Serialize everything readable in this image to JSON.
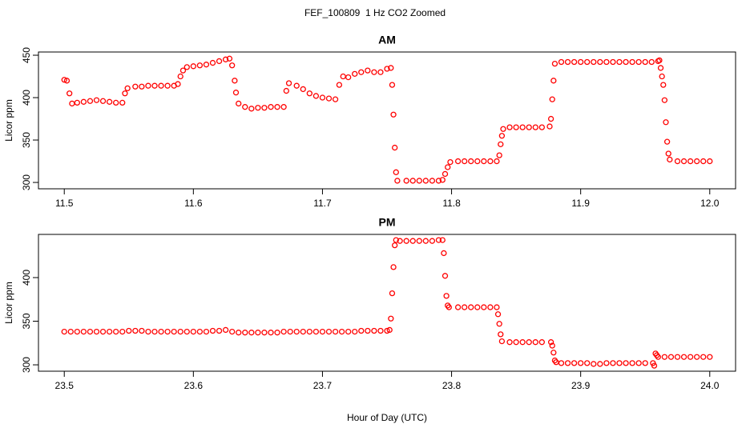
{
  "title": "FEF_100809  1 Hz CO2 Zoomed",
  "x_label": "Hour of Day (UTC)",
  "chart_data": [
    {
      "type": "scatter",
      "title": "AM",
      "y_label": "Licor ppm",
      "color": "#ff0000",
      "xlim": [
        11.48,
        12.02
      ],
      "ylim": [
        292.5,
        453.8
      ],
      "xticks": [
        11.5,
        11.6,
        11.7,
        11.8,
        11.9,
        {
          "value": 12,
          "label": "12.0"
        }
      ],
      "yticks": [
        300,
        350,
        400,
        450
      ],
      "x": [
        11.5,
        11.502,
        11.504,
        11.506,
        11.51,
        11.515,
        11.52,
        11.525,
        11.53,
        11.535,
        11.54,
        11.545,
        11.547,
        11.549,
        11.555,
        11.56,
        11.565,
        11.57,
        11.575,
        11.58,
        11.585,
        11.588,
        11.59,
        11.592,
        11.595,
        11.6,
        11.605,
        11.61,
        11.615,
        11.62,
        11.625,
        11.628,
        11.63,
        11.632,
        11.633,
        11.635,
        11.64,
        11.645,
        11.65,
        11.655,
        11.66,
        11.665,
        11.67,
        11.672,
        11.674,
        11.68,
        11.685,
        11.69,
        11.695,
        11.7,
        11.705,
        11.71,
        11.713,
        11.716,
        11.72,
        11.725,
        11.73,
        11.735,
        11.74,
        11.745,
        11.75,
        11.753,
        11.754,
        11.755,
        11.756,
        11.757,
        11.758,
        11.765,
        11.77,
        11.775,
        11.78,
        11.785,
        11.79,
        11.793,
        11.795,
        11.797,
        11.799,
        11.805,
        11.81,
        11.815,
        11.82,
        11.825,
        11.83,
        11.835,
        11.837,
        11.838,
        11.839,
        11.84,
        11.845,
        11.85,
        11.855,
        11.86,
        11.865,
        11.87,
        11.876,
        11.877,
        11.878,
        11.879,
        11.88,
        11.885,
        11.89,
        11.895,
        11.9,
        11.905,
        11.91,
        11.915,
        11.92,
        11.925,
        11.93,
        11.935,
        11.94,
        11.945,
        11.95,
        11.955,
        11.96,
        11.961,
        11.962,
        11.963,
        11.964,
        11.965,
        11.966,
        11.967,
        11.968,
        11.969,
        11.975,
        11.98,
        11.985,
        11.99,
        11.995,
        12.0
      ],
      "values": [
        421,
        420,
        405,
        393,
        394,
        395,
        396,
        397,
        396,
        395,
        394,
        394,
        405,
        411,
        413,
        413,
        414,
        414,
        414,
        414,
        414,
        416,
        425,
        432,
        436,
        437,
        438,
        439,
        441,
        443,
        445,
        446,
        438,
        420,
        406,
        393,
        389,
        387,
        388,
        388,
        389,
        389,
        389,
        408,
        417,
        414,
        410,
        405,
        402,
        400,
        399,
        398,
        415,
        425,
        424,
        428,
        430,
        432,
        430,
        430,
        434,
        435,
        415,
        380,
        341,
        312,
        302,
        302,
        302,
        302,
        302,
        302,
        302,
        303,
        310,
        318,
        324,
        325,
        325,
        325,
        325,
        325,
        325,
        325,
        332,
        345,
        355,
        363,
        365,
        365,
        365,
        365,
        365,
        365,
        366,
        375,
        398,
        420,
        440,
        442,
        442,
        442,
        442,
        442,
        442,
        442,
        442,
        442,
        442,
        442,
        442,
        442,
        442,
        442,
        443,
        444,
        435,
        425,
        415,
        397,
        371,
        348,
        334,
        327,
        325,
        325,
        325,
        325,
        325,
        325
      ]
    },
    {
      "type": "scatter",
      "title": "PM",
      "y_label": "Licor ppm",
      "color": "#ff0000",
      "xlim": [
        23.48,
        24.02
      ],
      "ylim": [
        292.7,
        449.5
      ],
      "xticks": [
        23.5,
        23.6,
        23.7,
        23.8,
        23.9,
        {
          "value": 24,
          "label": "24.0"
        }
      ],
      "yticks": [
        300,
        350,
        400
      ],
      "x": [
        23.5,
        23.505,
        23.51,
        23.515,
        23.52,
        23.525,
        23.53,
        23.535,
        23.54,
        23.545,
        23.55,
        23.555,
        23.56,
        23.565,
        23.57,
        23.575,
        23.58,
        23.585,
        23.59,
        23.595,
        23.6,
        23.605,
        23.61,
        23.615,
        23.62,
        23.625,
        23.63,
        23.635,
        23.64,
        23.645,
        23.65,
        23.655,
        23.66,
        23.665,
        23.67,
        23.675,
        23.68,
        23.685,
        23.69,
        23.695,
        23.7,
        23.705,
        23.71,
        23.715,
        23.72,
        23.725,
        23.73,
        23.735,
        23.74,
        23.745,
        23.75,
        23.752,
        23.753,
        23.754,
        23.755,
        23.756,
        23.757,
        23.76,
        23.765,
        23.77,
        23.775,
        23.78,
        23.785,
        23.79,
        23.793,
        23.794,
        23.795,
        23.796,
        23.797,
        23.798,
        23.805,
        23.81,
        23.815,
        23.82,
        23.825,
        23.83,
        23.835,
        23.836,
        23.837,
        23.838,
        23.839,
        23.845,
        23.85,
        23.855,
        23.86,
        23.865,
        23.87,
        23.877,
        23.878,
        23.879,
        23.88,
        23.881,
        23.885,
        23.89,
        23.895,
        23.9,
        23.905,
        23.91,
        23.915,
        23.92,
        23.925,
        23.93,
        23.935,
        23.94,
        23.945,
        23.95,
        23.956,
        23.957,
        23.958,
        23.959,
        23.96,
        23.965,
        23.97,
        23.975,
        23.98,
        23.985,
        23.99,
        23.995,
        24.0
      ],
      "values": [
        338,
        338,
        338,
        338,
        338,
        338,
        338,
        338,
        338,
        338,
        339,
        339,
        339,
        338,
        338,
        338,
        338,
        338,
        338,
        338,
        338,
        338,
        338,
        339,
        339,
        340,
        338,
        337,
        337,
        337,
        337,
        337,
        337,
        337,
        338,
        338,
        338,
        338,
        338,
        338,
        338,
        338,
        338,
        338,
        338,
        338,
        339,
        339,
        339,
        339,
        339,
        340,
        353,
        382,
        412,
        437,
        443,
        442,
        442,
        442,
        442,
        442,
        442,
        443,
        443,
        428,
        402,
        379,
        368,
        366,
        366,
        366,
        366,
        366,
        366,
        366,
        366,
        358,
        347,
        335,
        327,
        326,
        326,
        326,
        326,
        326,
        326,
        326,
        322,
        314,
        305,
        303,
        302,
        302,
        302,
        302,
        302,
        301,
        301,
        302,
        302,
        302,
        302,
        302,
        302,
        302,
        302,
        299,
        313,
        311,
        309,
        309,
        309,
        309,
        309,
        309,
        309,
        309,
        309
      ]
    }
  ]
}
